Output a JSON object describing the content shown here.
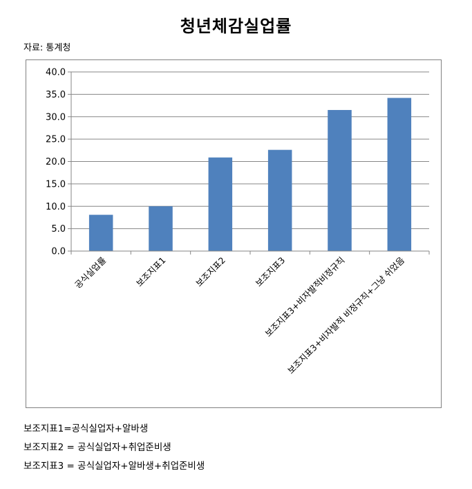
{
  "header": {
    "title": "청년체감실업률",
    "source": "자료: 통계청"
  },
  "chart_data": {
    "type": "bar",
    "title": "청년체감실업률",
    "categories": [
      "공식실업률",
      "보조지표1",
      "보조지표2",
      "보조지표3",
      "보조지표3+비자발적비정규직",
      "보조지표3+비자발적 비정규직+그냥 쉬었음"
    ],
    "values": [
      8.1,
      10.0,
      20.9,
      22.6,
      31.5,
      34.2
    ],
    "ylim": [
      0,
      40
    ],
    "yticks": [
      "0.0",
      "5.0",
      "10.0",
      "15.0",
      "20.0",
      "25.0",
      "30.0",
      "35.0",
      "40.0"
    ],
    "grid": true,
    "legend": "none",
    "bar_color": "#4f81bd",
    "grid_color": "#868686"
  },
  "notes": [
    "보조지표1=공식실업자+알바생",
    "보조지표2 = 공식실업자+취업준비생",
    "보조지표3 = 공식실업자+알바생+취업준비생"
  ]
}
